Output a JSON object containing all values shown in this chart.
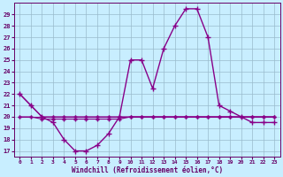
{
  "x": [
    0,
    1,
    2,
    3,
    4,
    5,
    6,
    7,
    8,
    9,
    10,
    11,
    12,
    13,
    14,
    15,
    16,
    17,
    18,
    19,
    20,
    21,
    22,
    23
  ],
  "y_main": [
    22,
    21,
    20,
    19.5,
    18,
    17,
    17,
    17.5,
    18.5,
    20,
    25,
    25,
    22.5,
    26,
    28,
    29.5,
    29.5,
    27,
    21,
    20.5,
    20,
    19.5,
    19.5,
    19.5
  ],
  "y_line2": [
    22,
    21,
    20,
    20,
    20,
    20,
    20,
    20,
    20,
    20,
    20,
    20,
    20,
    20,
    20,
    20,
    20,
    20,
    20,
    20,
    20,
    20,
    20,
    20
  ],
  "y_line3": [
    20,
    20,
    20,
    20,
    20,
    20,
    20,
    20,
    20,
    20,
    20,
    20,
    20,
    20,
    20,
    20,
    20,
    20,
    20,
    20,
    20,
    20,
    20,
    20
  ],
  "y_line4": [
    20,
    20,
    19.8,
    19.8,
    19.8,
    19.8,
    19.8,
    19.8,
    19.8,
    19.8,
    20,
    20,
    20,
    20,
    20,
    20,
    20,
    20,
    20,
    20,
    20,
    20,
    20,
    20
  ],
  "line_color": "#880088",
  "bg_color": "#c8eeff",
  "grid_color": "#99bbcc",
  "text_color": "#660066",
  "ylim_min": 16.5,
  "ylim_max": 30.0,
  "yticks": [
    17,
    18,
    19,
    20,
    21,
    22,
    23,
    24,
    25,
    26,
    27,
    28,
    29
  ],
  "xticks": [
    0,
    1,
    2,
    3,
    4,
    5,
    6,
    7,
    8,
    9,
    10,
    11,
    12,
    13,
    14,
    15,
    16,
    17,
    18,
    19,
    20,
    21,
    22,
    23
  ],
  "xlabel": "Windchill (Refroidissement éolien,°C)",
  "marker": "+",
  "marker_size": 4,
  "linewidth": 1.0
}
